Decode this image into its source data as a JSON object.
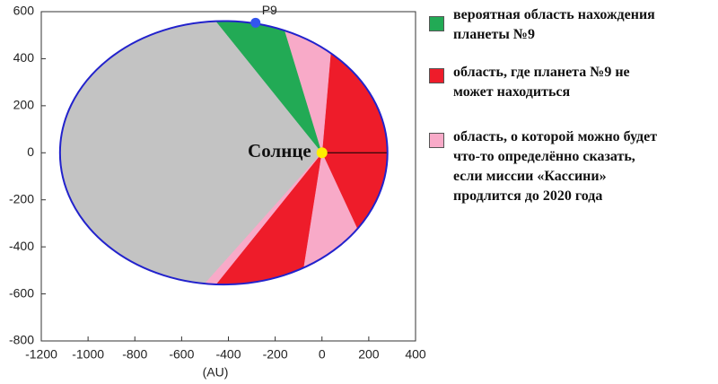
{
  "chart_data": {
    "type": "orbit",
    "xlabel": "(AU)",
    "xlim": [
      -1200,
      400
    ],
    "xticks": [
      -1200,
      -1000,
      -800,
      -600,
      -400,
      -200,
      0,
      200,
      400
    ],
    "ylim": [
      -800,
      600
    ],
    "yticks": [
      -800,
      -600,
      -400,
      -200,
      0,
      200,
      400,
      600
    ],
    "orbit": {
      "semi_major": 700,
      "eccentricity": 0.6,
      "color": "#2222cc",
      "fill": "#c3c3c3"
    },
    "sun": {
      "label": "Солнце",
      "x": 0,
      "y": 0,
      "color": "#ffee00"
    },
    "planet": {
      "label": "P9",
      "x": -284,
      "y": 553,
      "color": "#3355ee"
    },
    "annotation": "???",
    "series": [
      {
        "name": "вероятная область нахождения\nпланеты №9",
        "color": "#22aa55",
        "sectors": [
          [
            107,
            129
          ]
        ]
      },
      {
        "name": "область, где планета №9 не\nможет находиться",
        "color": "#ee1c2a",
        "sectors": [
          [
            -65,
            85
          ],
          [
            231,
            261
          ]
        ]
      },
      {
        "name": "область, о которой можно будет\nчто-то определённо сказать,\nесли миссии «Кассини»\nпродлится до 2020 года",
        "color": "#f8aac8",
        "sectors": [
          [
            85,
            107
          ],
          [
            228,
            231
          ],
          [
            261,
            295
          ]
        ]
      }
    ]
  }
}
